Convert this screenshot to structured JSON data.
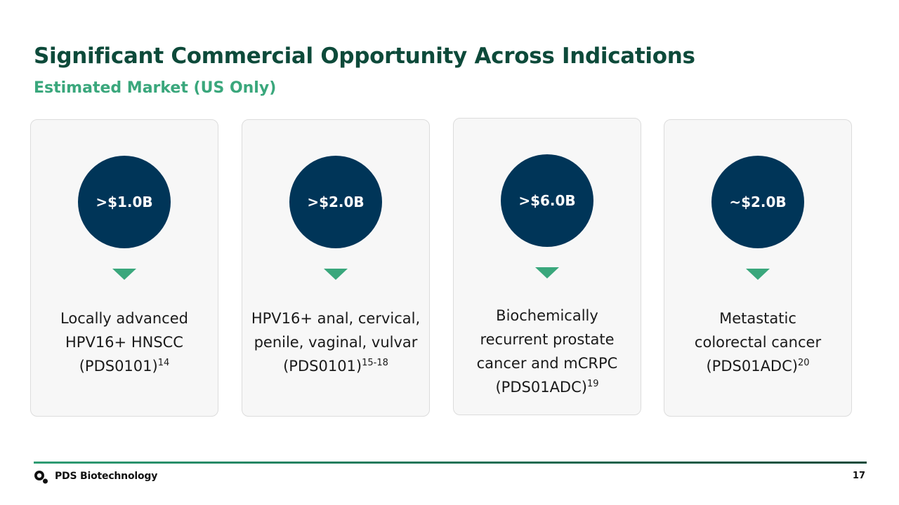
{
  "slide": {
    "title": "Significant Commercial Opportunity Across Indications",
    "subtitle": "Estimated Market (US Only)"
  },
  "cards": [
    {
      "value": ">$1.0B",
      "lines": [
        "Locally advanced",
        "HPV16+ HNSCC",
        "(PDS0101)"
      ],
      "ref": "14"
    },
    {
      "value": ">$2.0B",
      "lines": [
        "HPV16+ anal, cervical,",
        "penile, vaginal, vulvar",
        "(PDS0101)"
      ],
      "ref": "15-18"
    },
    {
      "value": ">$6.0B",
      "lines": [
        "Biochemically",
        "recurrent prostate",
        "cancer and mCRPC",
        "(PDS01ADC)"
      ],
      "ref": "19"
    },
    {
      "value": "~$2.0B",
      "lines": [
        "Metastatic",
        "colorectal cancer",
        "(PDS01ADC)"
      ],
      "ref": "20"
    }
  ],
  "footer": {
    "brand": "PDS Biotechnology",
    "page": "17"
  },
  "colors": {
    "title": "#0d4a3a",
    "accent": "#3aa77c",
    "circle": "#003558",
    "card_bg": "#f7f7f7"
  }
}
